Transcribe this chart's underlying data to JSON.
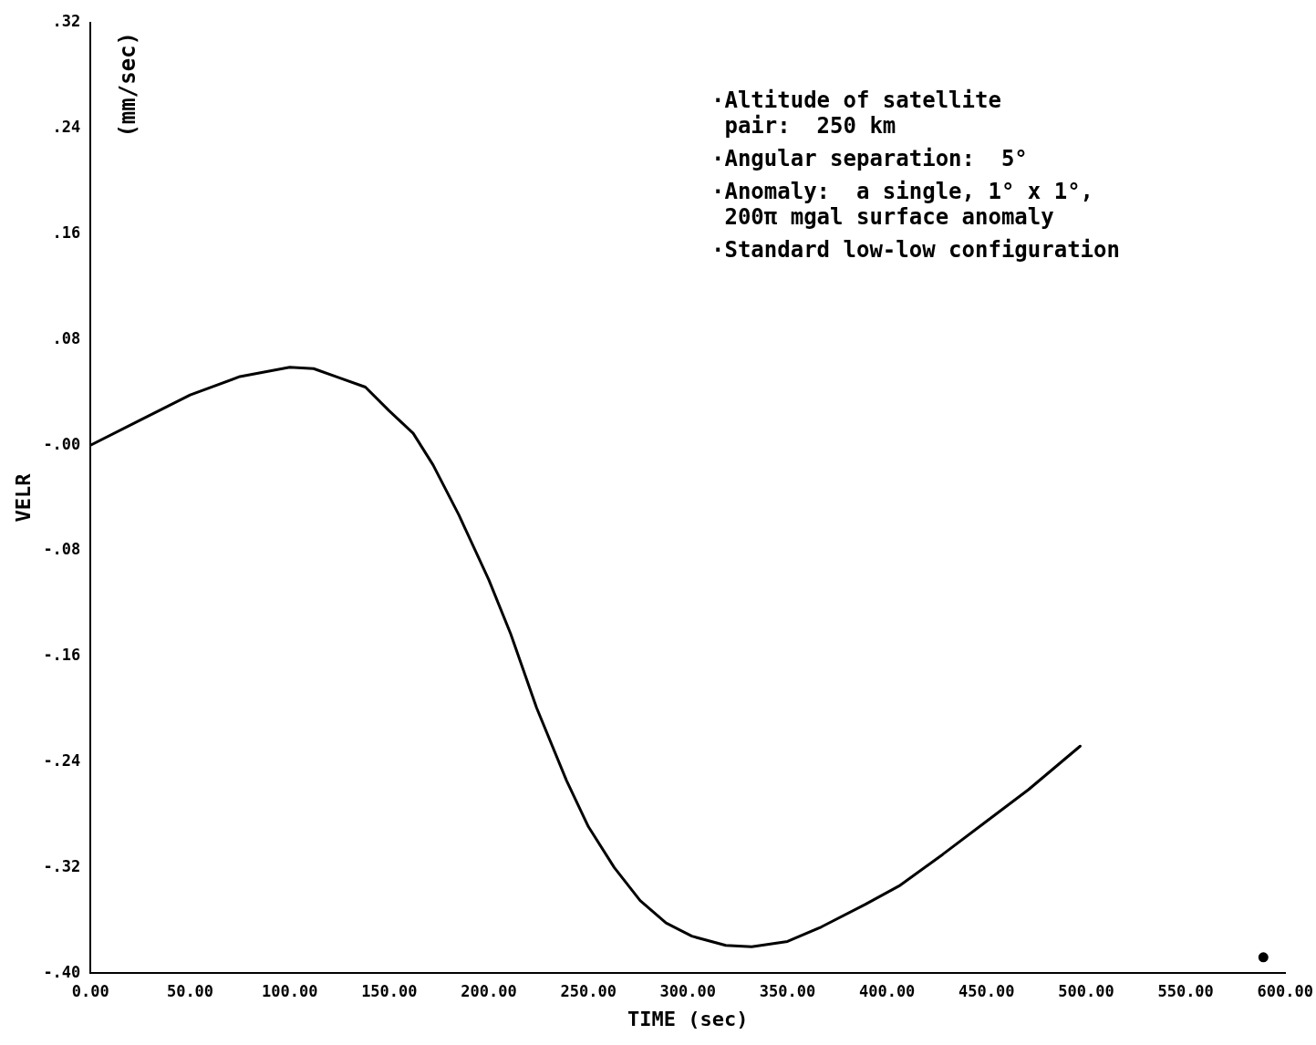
{
  "chart_data": {
    "type": "line",
    "xlabel": "TIME (sec)",
    "ylabel": "VELR",
    "annotations": [
      "(mm/sec)",
      "·Altitude of satellite\n pair:  250 km",
      "·Angular separation:  5°",
      "·Anomaly:  a single, 1° x 1°,\n 200π mgal surface anomaly",
      "·Standard low-low configuration"
    ],
    "xlim": [
      0,
      600
    ],
    "xticks": [
      {
        "value": 0,
        "label": "0.00"
      },
      {
        "value": 50,
        "label": "50.00"
      },
      {
        "value": 100,
        "label": "100.00"
      },
      {
        "value": 150,
        "label": "150.00"
      },
      {
        "value": 200,
        "label": "200.00"
      },
      {
        "value": 250,
        "label": "250.00"
      },
      {
        "value": 300,
        "label": "300.00"
      },
      {
        "value": 350,
        "label": "350.00"
      },
      {
        "value": 400,
        "label": "400.00"
      },
      {
        "value": 450,
        "label": "450.00"
      },
      {
        "value": 500,
        "label": "500.00"
      },
      {
        "value": 550,
        "label": "550.00"
      },
      {
        "value": 600,
        "label": "600.00"
      }
    ],
    "ylim": [
      -0.4,
      0.32
    ],
    "yticks": [
      {
        "value": -0.4,
        "label": "-.40"
      },
      {
        "value": -0.32,
        "label": "-.32"
      },
      {
        "value": -0.24,
        "label": "-.24"
      },
      {
        "value": -0.16,
        "label": "-.16"
      },
      {
        "value": -0.08,
        "label": "-.08"
      },
      {
        "value": 0,
        "label": "-.00"
      },
      {
        "value": 0.08,
        "label": ".08"
      },
      {
        "value": 0.16,
        "label": ".16"
      },
      {
        "value": 0.24,
        "label": ".24"
      },
      {
        "value": 0.32,
        "label": ".32"
      }
    ],
    "grid": false,
    "legend": false,
    "marker": "none",
    "line_style": "solid",
    "series": [
      {
        "color": "#000000",
        "x": [
          0,
          25,
          50,
          75,
          100,
          112,
          125,
          138,
          150,
          162,
          172,
          185,
          200,
          211,
          224,
          239,
          250,
          263,
          276,
          289,
          302,
          319,
          332,
          350,
          367,
          389,
          406,
          428,
          449,
          471,
          497
        ],
        "values": [
          0,
          0.019,
          0.038,
          0.052,
          0.059,
          0.058,
          0.051,
          0.044,
          0.026,
          0.009,
          -0.015,
          -0.053,
          -0.102,
          -0.143,
          -0.199,
          -0.254,
          -0.289,
          -0.32,
          -0.345,
          -0.362,
          -0.372,
          -0.379,
          -0.38,
          -0.376,
          -0.365,
          -0.348,
          -0.334,
          -0.31,
          -0.286,
          -0.261,
          -0.228
        ]
      },
      {
        "type": "scatter",
        "marker": "circle",
        "color": "#000000",
        "x": [
          589
        ],
        "values": [
          -0.388
        ]
      }
    ]
  }
}
